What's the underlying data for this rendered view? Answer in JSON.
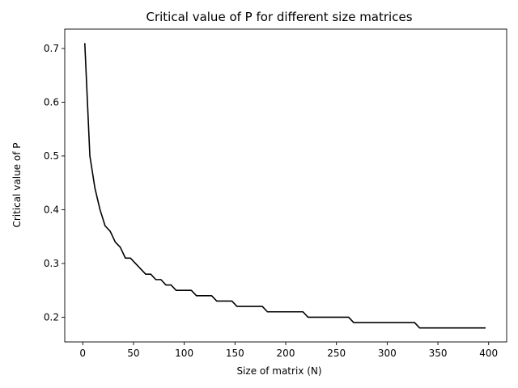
{
  "chart_data": {
    "type": "line",
    "title": "Critical value of P for different size matrices",
    "xlabel": "Size of matrix (N)",
    "ylabel": "Critical value of P",
    "xlim": [
      -17.75,
      417.75
    ],
    "ylim": [
      0.154,
      0.736
    ],
    "xticks": [
      0,
      50,
      100,
      150,
      200,
      250,
      300,
      350,
      400
    ],
    "yticks": [
      0.2,
      0.3,
      0.4,
      0.5,
      0.6,
      0.7
    ],
    "ytick_labels": [
      "0.2",
      "0.3",
      "0.4",
      "0.5",
      "0.6",
      "0.7"
    ],
    "grid": false,
    "legend": "none",
    "series": [
      {
        "color": "#000000",
        "x": [
          2,
          7,
          12,
          17,
          22,
          27,
          32,
          37,
          42,
          47,
          52,
          57,
          62,
          67,
          72,
          77,
          82,
          87,
          92,
          97,
          102,
          107,
          112,
          117,
          122,
          127,
          132,
          137,
          142,
          147,
          152,
          157,
          162,
          167,
          172,
          177,
          182,
          187,
          192,
          197,
          202,
          207,
          212,
          217,
          222,
          227,
          232,
          237,
          242,
          247,
          252,
          257,
          262,
          267,
          272,
          277,
          282,
          287,
          292,
          297,
          302,
          307,
          312,
          317,
          322,
          327,
          332,
          337,
          342,
          347,
          352,
          357,
          362,
          367,
          372,
          377,
          382,
          387,
          392,
          397
        ],
        "y": [
          0.71,
          0.5,
          0.44,
          0.4,
          0.37,
          0.36,
          0.34,
          0.33,
          0.31,
          0.31,
          0.3,
          0.29,
          0.28,
          0.28,
          0.27,
          0.27,
          0.26,
          0.26,
          0.25,
          0.25,
          0.25,
          0.25,
          0.24,
          0.24,
          0.24,
          0.24,
          0.23,
          0.23,
          0.23,
          0.23,
          0.22,
          0.22,
          0.22,
          0.22,
          0.22,
          0.22,
          0.21,
          0.21,
          0.21,
          0.21,
          0.21,
          0.21,
          0.21,
          0.21,
          0.2,
          0.2,
          0.2,
          0.2,
          0.2,
          0.2,
          0.2,
          0.2,
          0.2,
          0.19,
          0.19,
          0.19,
          0.19,
          0.19,
          0.19,
          0.19,
          0.19,
          0.19,
          0.19,
          0.19,
          0.19,
          0.19,
          0.18,
          0.18,
          0.18,
          0.18,
          0.18,
          0.18,
          0.18,
          0.18,
          0.18,
          0.18,
          0.18,
          0.18,
          0.18,
          0.18
        ]
      }
    ]
  }
}
